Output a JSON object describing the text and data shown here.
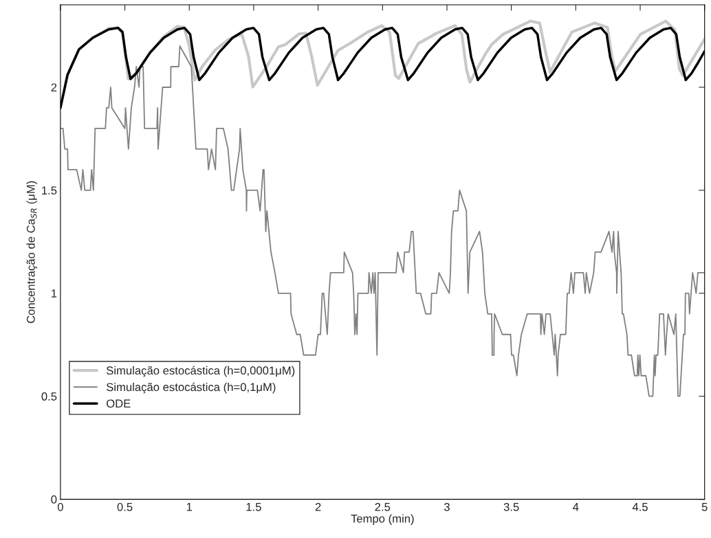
{
  "chart_data": {
    "type": "line",
    "xlabel": "Tempo (min)",
    "ylabel": "Concentração de Ca$_{SR}$ (μM)",
    "xlim": [
      0,
      5
    ],
    "ylim": [
      0,
      2.4
    ],
    "xticks": [
      0,
      0.5,
      1,
      1.5,
      2,
      2.5,
      3,
      3.5,
      4,
      4.5,
      5
    ],
    "yticks": [
      0,
      0.5,
      1,
      1.5,
      2
    ],
    "grid": false,
    "legend": "bottom left",
    "marker": "none",
    "line_style": "solid",
    "series": [
      {
        "name": "Simulação estocástica (h=0,0001μM)",
        "color": "#c8c8c8",
        "x": [
          0,
          0.055,
          0.144,
          0.251,
          0.375,
          0.447,
          0.482,
          0.509,
          0.527,
          0.589,
          0.696,
          0.802,
          0.909,
          0.96,
          1.0,
          1.043,
          1.1,
          1.2,
          1.3,
          1.372,
          1.408,
          1.46,
          1.493,
          1.6,
          1.692,
          1.746,
          1.852,
          1.906,
          1.95,
          1.995,
          2.155,
          2.262,
          2.386,
          2.493,
          2.555,
          2.6,
          2.626,
          2.777,
          2.92,
          3.063,
          3.116,
          3.151,
          3.178,
          3.294,
          3.347,
          3.436,
          3.649,
          3.72,
          3.756,
          3.8,
          3.97,
          4.148,
          4.246,
          4.281,
          4.308,
          4.502,
          4.698,
          4.769,
          4.804,
          4.831,
          5.0
        ],
        "values": [
          1.9,
          2.06,
          2.184,
          2.24,
          2.285,
          2.29,
          2.26,
          2.13,
          2.04,
          2.068,
          2.17,
          2.245,
          2.296,
          2.29,
          2.2,
          2.035,
          2.1,
          2.18,
          2.23,
          2.25,
          2.257,
          2.15,
          2.001,
          2.1,
          2.196,
          2.207,
          2.259,
          2.262,
          2.15,
          2.01,
          2.179,
          2.218,
          2.268,
          2.299,
          2.268,
          2.057,
          2.043,
          2.212,
          2.262,
          2.299,
          2.257,
          2.09,
          2.025,
          2.157,
          2.207,
          2.257,
          2.321,
          2.312,
          2.201,
          2.073,
          2.268,
          2.312,
          2.29,
          2.146,
          2.079,
          2.257,
          2.321,
          2.279,
          2.09,
          2.057,
          2.234
        ]
      },
      {
        "name": "Simulação estocástica (h=0,1μM)",
        "color": "#808080",
        "x": [
          0,
          0.02,
          0.034,
          0.055,
          0.059,
          0.126,
          0.162,
          0.174,
          0.189,
          0.233,
          0.242,
          0.256,
          0.269,
          0.349,
          0.358,
          0.375,
          0.39,
          0.399,
          0.5,
          0.505,
          0.528,
          0.55,
          0.575,
          0.589,
          0.61,
          0.617,
          0.642,
          0.653,
          0.749,
          0.754,
          0.758,
          0.793,
          0.856,
          0.857,
          0.918,
          0.927,
          1.016,
          1.052,
          1.14,
          1.149,
          1.173,
          1.203,
          1.212,
          1.265,
          1.301,
          1.327,
          1.345,
          1.39,
          1.395,
          1.416,
          1.443,
          1.444,
          1.447,
          1.529,
          1.55,
          1.573,
          1.58,
          1.594,
          1.603,
          1.634,
          1.665,
          1.692,
          1.786,
          1.79,
          1.834,
          1.861,
          1.888,
          1.98,
          2.0,
          2.018,
          2.032,
          2.043,
          2.071,
          2.085,
          2.096,
          2.199,
          2.203,
          2.267,
          2.276,
          2.285,
          2.294,
          2.302,
          2.309,
          2.39,
          2.395,
          2.413,
          2.425,
          2.434,
          2.443,
          2.457,
          2.466,
          2.605,
          2.617,
          2.662,
          2.671,
          2.707,
          2.724,
          2.737,
          2.762,
          2.795,
          2.836,
          2.875,
          2.881,
          2.92,
          2.938,
          3.018,
          3.027,
          3.036,
          3.05,
          3.085,
          3.098,
          3.151,
          3.164,
          3.178,
          3.253,
          3.276,
          3.285,
          3.294,
          3.317,
          3.347,
          3.352,
          3.365,
          3.366,
          3.37,
          3.43,
          3.494,
          3.502,
          3.516,
          3.543,
          3.555,
          3.578,
          3.623,
          3.726,
          3.729,
          3.738,
          3.756,
          3.769,
          3.801,
          3.833,
          3.84,
          3.858,
          3.863,
          3.881,
          3.922,
          3.934,
          3.949,
          3.964,
          3.982,
          3.993,
          4.059,
          4.073,
          4.082,
          4.107,
          4.139,
          4.151,
          4.196,
          4.258,
          4.281,
          4.294,
          4.299,
          4.317,
          4.318,
          4.329,
          4.34,
          4.352,
          4.361,
          4.37,
          4.397,
          4.406,
          4.432,
          4.456,
          4.477,
          4.482,
          4.489,
          4.498,
          4.507,
          4.544,
          4.569,
          4.598,
          4.61,
          4.616,
          4.623,
          4.637,
          4.651,
          4.681,
          4.696,
          4.705,
          4.717,
          4.762,
          4.776,
          4.794,
          4.808,
          4.836,
          4.847,
          4.851,
          4.877,
          4.883,
          4.907,
          4.934,
          4.948,
          4.996
        ],
        "values": [
          1.8,
          1.8,
          1.7,
          1.7,
          1.6,
          1.6,
          1.5,
          1.6,
          1.5,
          1.5,
          1.6,
          1.5,
          1.8,
          1.8,
          1.9,
          1.9,
          2.0,
          1.9,
          1.8,
          1.9,
          1.7,
          1.9,
          2.0,
          2.1,
          2.0,
          2.1,
          2.1,
          1.8,
          1.8,
          1.9,
          1.7,
          2.0,
          2.0,
          2.1,
          2.1,
          2.2,
          2.1,
          1.7,
          1.7,
          1.6,
          1.7,
          1.6,
          1.8,
          1.8,
          1.7,
          1.5,
          1.5,
          1.7,
          1.8,
          1.6,
          1.5,
          1.4,
          1.5,
          1.5,
          1.4,
          1.6,
          1.6,
          1.3,
          1.4,
          1.2,
          1.1,
          1.0,
          1.0,
          0.9,
          0.8,
          0.8,
          0.7,
          0.7,
          0.8,
          0.8,
          1.0,
          1.0,
          0.8,
          1.0,
          1.1,
          1.1,
          1.2,
          1.1,
          1.0,
          0.8,
          0.9,
          0.8,
          1.0,
          1.0,
          1.1,
          1.0,
          1.1,
          1.0,
          1.1,
          0.7,
          1.1,
          1.1,
          1.2,
          1.1,
          1.2,
          1.2,
          1.3,
          1.3,
          1.0,
          1.0,
          0.9,
          0.9,
          1.0,
          1.0,
          1.1,
          1.0,
          1.1,
          1.3,
          1.4,
          1.4,
          1.5,
          1.4,
          1.0,
          1.2,
          1.3,
          1.2,
          1.1,
          1.0,
          0.9,
          0.9,
          0.7,
          0.7,
          0.8,
          0.9,
          0.8,
          0.8,
          0.7,
          0.7,
          0.6,
          0.7,
          0.8,
          0.9,
          0.9,
          0.8,
          0.9,
          0.8,
          0.9,
          0.9,
          0.7,
          0.8,
          0.6,
          0.7,
          0.8,
          0.8,
          1.0,
          1.0,
          1.1,
          1.0,
          1.1,
          1.1,
          1.0,
          1.1,
          1.0,
          1.1,
          1.2,
          1.2,
          1.3,
          1.2,
          1.3,
          1.2,
          1.1,
          1.0,
          1.3,
          1.2,
          1.1,
          0.9,
          0.9,
          0.8,
          0.7,
          0.7,
          0.6,
          0.6,
          0.7,
          0.6,
          0.7,
          0.6,
          0.6,
          0.5,
          0.5,
          0.7,
          0.6,
          0.7,
          0.7,
          0.9,
          0.9,
          0.7,
          0.8,
          0.9,
          0.8,
          0.9,
          0.5,
          0.5,
          0.8,
          0.8,
          1.0,
          1.0,
          0.9,
          1.1,
          1.0,
          1.1,
          1.1
        ]
      },
      {
        "name": "ODE",
        "color": "#000000",
        "x": [
          0,
          0.055,
          0.144,
          0.251,
          0.375,
          0.447,
          0.482,
          0.509,
          0.544,
          0.589,
          0.696,
          0.802,
          0.909,
          0.963,
          1.007,
          1.034,
          1.078,
          1.123,
          1.23,
          1.336,
          1.443,
          1.498,
          1.541,
          1.568,
          1.621,
          1.666,
          1.773,
          1.879,
          1.986,
          2.041,
          2.084,
          2.111,
          2.155,
          2.2,
          2.307,
          2.413,
          2.52,
          2.575,
          2.618,
          2.645,
          2.698,
          2.743,
          2.85,
          2.956,
          3.063,
          3.118,
          3.161,
          3.188,
          3.24,
          3.285,
          3.392,
          3.498,
          3.605,
          3.66,
          3.703,
          3.73,
          3.777,
          3.822,
          3.929,
          4.035,
          4.142,
          4.197,
          4.24,
          4.267,
          4.317,
          4.362,
          4.469,
          4.575,
          4.682,
          4.737,
          4.78,
          4.807,
          4.854,
          4.899,
          4.95,
          5.0
        ],
        "values": [
          1.9,
          2.06,
          2.184,
          2.24,
          2.281,
          2.288,
          2.268,
          2.146,
          2.04,
          2.068,
          2.168,
          2.24,
          2.281,
          2.288,
          2.257,
          2.146,
          2.035,
          2.068,
          2.168,
          2.24,
          2.281,
          2.288,
          2.257,
          2.146,
          2.035,
          2.068,
          2.168,
          2.24,
          2.281,
          2.288,
          2.257,
          2.146,
          2.035,
          2.068,
          2.168,
          2.24,
          2.281,
          2.288,
          2.257,
          2.146,
          2.035,
          2.068,
          2.168,
          2.24,
          2.281,
          2.288,
          2.257,
          2.146,
          2.035,
          2.068,
          2.168,
          2.24,
          2.281,
          2.288,
          2.257,
          2.146,
          2.035,
          2.068,
          2.168,
          2.24,
          2.281,
          2.288,
          2.257,
          2.146,
          2.035,
          2.068,
          2.168,
          2.24,
          2.281,
          2.288,
          2.257,
          2.146,
          2.035,
          2.068,
          2.12,
          2.175
        ]
      }
    ]
  }
}
